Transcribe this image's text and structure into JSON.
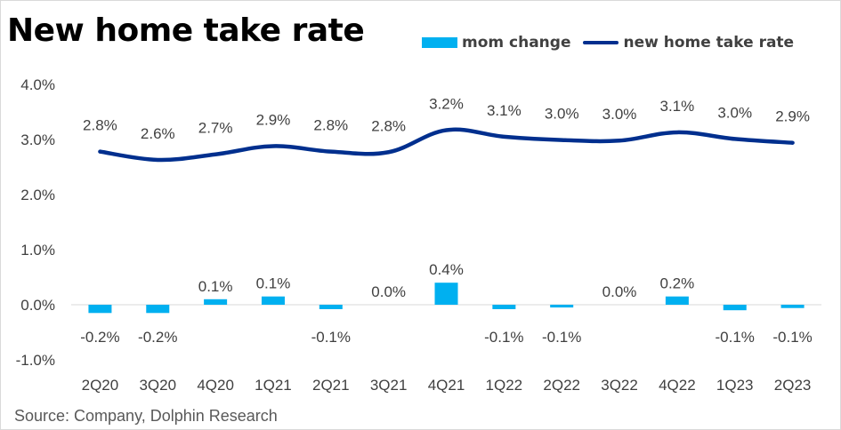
{
  "title": "New home take rate",
  "source": "Source: Company, Dolphin Research",
  "legend": {
    "bar": "mom change",
    "line": "new home take rate"
  },
  "colors": {
    "bar": "#00B0F0",
    "line": "#002F8E"
  },
  "chart_data": {
    "type": "bar+line",
    "title": "New home take rate",
    "categories": [
      "2Q20",
      "3Q20",
      "4Q20",
      "1Q21",
      "2Q21",
      "3Q21",
      "4Q21",
      "1Q22",
      "2Q22",
      "3Q22",
      "4Q22",
      "1Q23",
      "2Q23"
    ],
    "y_ticks": [
      "4.0%",
      "3.0%",
      "2.0%",
      "1.0%",
      "0.0%",
      "-1.0%"
    ],
    "ylim": [
      -1.0,
      4.0
    ],
    "series": [
      {
        "name": "mom change",
        "type": "bar",
        "values": [
          -0.15,
          -0.15,
          0.1,
          0.15,
          -0.08,
          0.0,
          0.4,
          -0.08,
          -0.05,
          0.0,
          0.15,
          -0.1,
          -0.06
        ],
        "labels": [
          "-0.2%",
          "-0.2%",
          "0.1%",
          "0.1%",
          "-0.1%",
          "0.0%",
          "0.4%",
          "-0.1%",
          "-0.1%",
          "0.0%",
          "0.2%",
          "-0.1%",
          "-0.1%"
        ]
      },
      {
        "name": "new home take rate",
        "type": "line",
        "values": [
          2.78,
          2.63,
          2.73,
          2.88,
          2.78,
          2.77,
          3.17,
          3.05,
          2.99,
          2.98,
          3.13,
          3.01,
          2.94
        ],
        "labels": [
          "2.8%",
          "2.6%",
          "2.7%",
          "2.9%",
          "2.8%",
          "2.8%",
          "3.2%",
          "3.1%",
          "3.0%",
          "3.0%",
          "3.1%",
          "3.0%",
          "2.9%"
        ]
      }
    ],
    "grid": false,
    "legend_position": "top-right"
  }
}
